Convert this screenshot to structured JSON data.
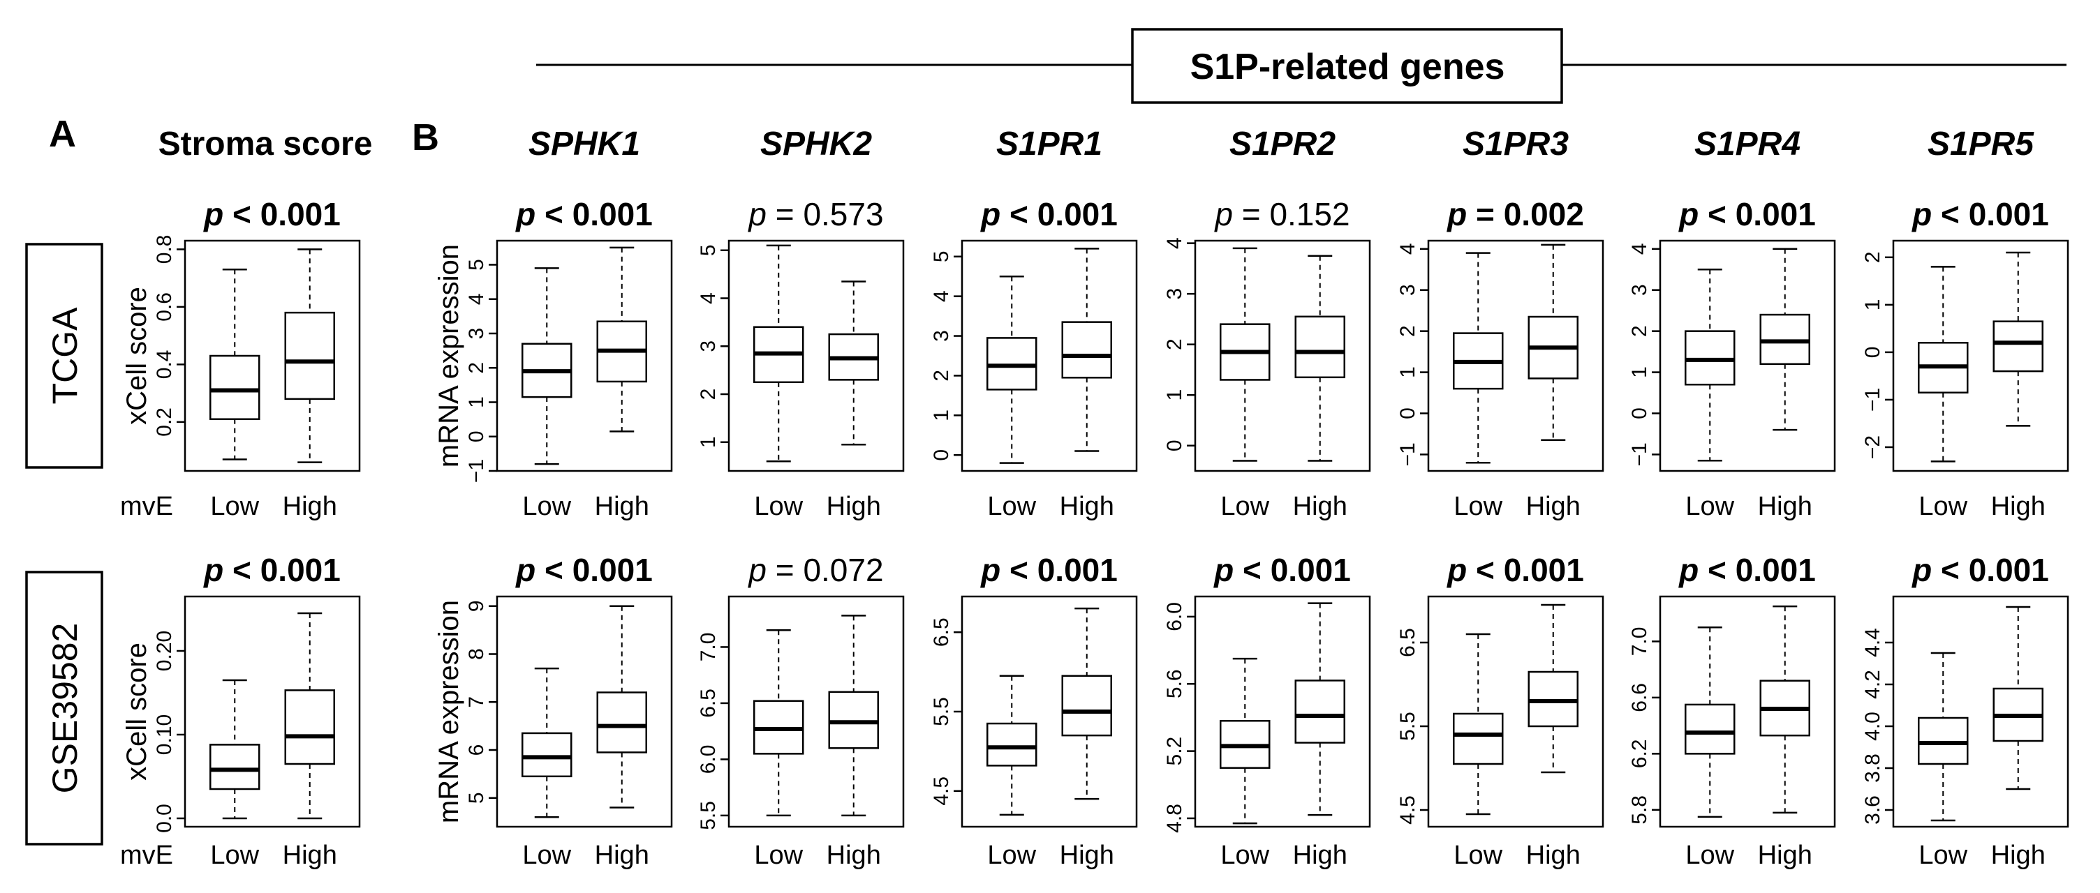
{
  "header": {
    "group_title": "S1P-related genes",
    "panel_a_label": "A",
    "panel_b_label": "B",
    "stroma_title": "Stroma score"
  },
  "row_labels": [
    "TCGA",
    "GSE39582"
  ],
  "group_axis_label": "mvE",
  "group_categories": [
    "Low",
    "High"
  ],
  "ylabels": {
    "stroma": "xCell score",
    "genes": "mRNA expression"
  },
  "chart_data": [
    {
      "type": "boxplot",
      "row": 0,
      "col": 0,
      "title": "",
      "pvalue": "p < 0.001",
      "pvalue_bold": true,
      "ylabel": "xCell score",
      "ylim": [
        0.03,
        0.83
      ],
      "yticks": [
        0.2,
        0.4,
        0.6,
        0.8
      ],
      "tick_labels": [
        "0.2",
        "0.4",
        "0.6",
        "0.8"
      ],
      "groups": [
        {
          "name": "Low",
          "min": 0.07,
          "q1": 0.21,
          "median": 0.31,
          "q3": 0.43,
          "max": 0.73
        },
        {
          "name": "High",
          "min": 0.06,
          "q1": 0.28,
          "median": 0.41,
          "q3": 0.58,
          "max": 0.8
        }
      ]
    },
    {
      "type": "boxplot",
      "row": 0,
      "col": 1,
      "title": "SPHK1",
      "pvalue": "p < 0.001",
      "pvalue_bold": true,
      "ylabel": "mRNA expression",
      "ylim": [
        -1,
        5.7
      ],
      "yticks": [
        -1,
        0,
        1,
        2,
        3,
        4,
        5
      ],
      "tick_labels": [
        "−1",
        "0",
        "1",
        "2",
        "3",
        "4",
        "5"
      ],
      "groups": [
        {
          "name": "Low",
          "min": -0.8,
          "q1": 1.15,
          "median": 1.9,
          "q3": 2.7,
          "max": 4.9
        },
        {
          "name": "High",
          "min": 0.15,
          "q1": 1.6,
          "median": 2.5,
          "q3": 3.35,
          "max": 5.5
        }
      ]
    },
    {
      "type": "boxplot",
      "row": 0,
      "col": 2,
      "title": "SPHK2",
      "pvalue": "p = 0.573",
      "pvalue_bold": false,
      "ylabel": "",
      "ylim": [
        0.4,
        5.2
      ],
      "yticks": [
        1,
        2,
        3,
        4,
        5
      ],
      "tick_labels": [
        "1",
        "2",
        "3",
        "4",
        "5"
      ],
      "groups": [
        {
          "name": "Low",
          "min": 0.6,
          "q1": 2.25,
          "median": 2.85,
          "q3": 3.4,
          "max": 5.1
        },
        {
          "name": "High",
          "min": 0.95,
          "q1": 2.3,
          "median": 2.75,
          "q3": 3.25,
          "max": 4.35
        }
      ]
    },
    {
      "type": "boxplot",
      "row": 0,
      "col": 3,
      "title": "S1PR1",
      "pvalue": "p < 0.001",
      "pvalue_bold": true,
      "ylabel": "",
      "ylim": [
        -0.4,
        5.4
      ],
      "yticks": [
        0,
        1,
        2,
        3,
        4,
        5
      ],
      "tick_labels": [
        "0",
        "1",
        "2",
        "3",
        "4",
        "5"
      ],
      "groups": [
        {
          "name": "Low",
          "min": -0.2,
          "q1": 1.65,
          "median": 2.25,
          "q3": 2.95,
          "max": 4.5
        },
        {
          "name": "High",
          "min": 0.1,
          "q1": 1.95,
          "median": 2.5,
          "q3": 3.35,
          "max": 5.2
        }
      ]
    },
    {
      "type": "boxplot",
      "row": 0,
      "col": 4,
      "title": "S1PR2",
      "pvalue": "p = 0.152",
      "pvalue_bold": false,
      "ylabel": "",
      "ylim": [
        -0.5,
        4.05
      ],
      "yticks": [
        0,
        1,
        2,
        3,
        4
      ],
      "tick_labels": [
        "0",
        "1",
        "2",
        "3",
        "4"
      ],
      "groups": [
        {
          "name": "Low",
          "min": -0.3,
          "q1": 1.3,
          "median": 1.85,
          "q3": 2.4,
          "max": 3.9
        },
        {
          "name": "High",
          "min": -0.3,
          "q1": 1.35,
          "median": 1.85,
          "q3": 2.55,
          "max": 3.75
        }
      ]
    },
    {
      "type": "boxplot",
      "row": 0,
      "col": 5,
      "title": "S1PR3",
      "pvalue": "p = 0.002",
      "pvalue_bold": true,
      "ylabel": "",
      "ylim": [
        -1.4,
        4.2
      ],
      "yticks": [
        -1,
        0,
        1,
        2,
        3,
        4
      ],
      "tick_labels": [
        "−1",
        "0",
        "1",
        "2",
        "3",
        "4"
      ],
      "groups": [
        {
          "name": "Low",
          "min": -1.2,
          "q1": 0.6,
          "median": 1.25,
          "q3": 1.95,
          "max": 3.9
        },
        {
          "name": "High",
          "min": -0.65,
          "q1": 0.85,
          "median": 1.6,
          "q3": 2.35,
          "max": 4.1
        }
      ]
    },
    {
      "type": "boxplot",
      "row": 0,
      "col": 6,
      "title": "S1PR4",
      "pvalue": "p < 0.001",
      "pvalue_bold": true,
      "ylabel": "",
      "ylim": [
        -1.4,
        4.2
      ],
      "yticks": [
        -1,
        0,
        1,
        2,
        3,
        4
      ],
      "tick_labels": [
        "−1",
        "0",
        "1",
        "2",
        "3",
        "4"
      ],
      "groups": [
        {
          "name": "Low",
          "min": -1.15,
          "q1": 0.7,
          "median": 1.3,
          "q3": 2.0,
          "max": 3.5
        },
        {
          "name": "High",
          "min": -0.4,
          "q1": 1.2,
          "median": 1.75,
          "q3": 2.4,
          "max": 4.0
        }
      ]
    },
    {
      "type": "boxplot",
      "row": 0,
      "col": 7,
      "title": "S1PR5",
      "pvalue": "p < 0.001",
      "pvalue_bold": true,
      "ylabel": "",
      "ylim": [
        -2.5,
        2.35
      ],
      "yticks": [
        -2,
        -1,
        0,
        1,
        2
      ],
      "tick_labels": [
        "−2",
        "−1",
        "0",
        "1",
        "2"
      ],
      "groups": [
        {
          "name": "Low",
          "min": -2.3,
          "q1": -0.85,
          "median": -0.3,
          "q3": 0.2,
          "max": 1.8
        },
        {
          "name": "High",
          "min": -1.55,
          "q1": -0.4,
          "median": 0.2,
          "q3": 0.65,
          "max": 2.1
        }
      ]
    },
    {
      "type": "boxplot",
      "row": 1,
      "col": 0,
      "title": "",
      "pvalue": "p < 0.001",
      "pvalue_bold": true,
      "ylabel": "xCell score",
      "ylim": [
        -0.01,
        0.265
      ],
      "yticks": [
        0.0,
        0.1,
        0.2
      ],
      "tick_labels": [
        "0.0",
        "0.10",
        "0.20"
      ],
      "groups": [
        {
          "name": "Low",
          "min": 0.0,
          "q1": 0.035,
          "median": 0.058,
          "q3": 0.088,
          "max": 0.165
        },
        {
          "name": "High",
          "min": 0.0,
          "q1": 0.065,
          "median": 0.098,
          "q3": 0.153,
          "max": 0.245
        }
      ]
    },
    {
      "type": "boxplot",
      "row": 1,
      "col": 1,
      "title": "",
      "pvalue": "p < 0.001",
      "pvalue_bold": true,
      "ylabel": "mRNA expression",
      "ylim": [
        4.4,
        9.2
      ],
      "yticks": [
        5,
        6,
        7,
        8,
        9
      ],
      "tick_labels": [
        "5",
        "6",
        "7",
        "8",
        "9"
      ],
      "groups": [
        {
          "name": "Low",
          "min": 4.6,
          "q1": 5.45,
          "median": 5.85,
          "q3": 6.35,
          "max": 7.7
        },
        {
          "name": "High",
          "min": 4.8,
          "q1": 5.95,
          "median": 6.5,
          "q3": 7.2,
          "max": 9.0
        }
      ]
    },
    {
      "type": "boxplot",
      "row": 1,
      "col": 2,
      "title": "",
      "pvalue": "p = 0.072",
      "pvalue_bold": false,
      "ylabel": "",
      "ylim": [
        5.4,
        7.45
      ],
      "yticks": [
        5.5,
        6.0,
        6.5,
        7.0
      ],
      "tick_labels": [
        "5.5",
        "6.0",
        "6.5",
        "7.0"
      ],
      "groups": [
        {
          "name": "Low",
          "min": 5.5,
          "q1": 6.05,
          "median": 6.27,
          "q3": 6.52,
          "max": 7.15
        },
        {
          "name": "High",
          "min": 5.5,
          "q1": 6.1,
          "median": 6.33,
          "q3": 6.6,
          "max": 7.28
        }
      ]
    },
    {
      "type": "boxplot",
      "row": 1,
      "col": 3,
      "title": "",
      "pvalue": "p < 0.001",
      "pvalue_bold": true,
      "ylabel": "",
      "ylim": [
        4.05,
        6.95
      ],
      "yticks": [
        4.5,
        5.5,
        6.5
      ],
      "tick_labels": [
        "4.5",
        "5.5",
        "6.5"
      ],
      "groups": [
        {
          "name": "Low",
          "min": 4.2,
          "q1": 4.82,
          "median": 5.05,
          "q3": 5.35,
          "max": 5.95
        },
        {
          "name": "High",
          "min": 4.4,
          "q1": 5.2,
          "median": 5.5,
          "q3": 5.95,
          "max": 6.8
        }
      ]
    },
    {
      "type": "boxplot",
      "row": 1,
      "col": 4,
      "title": "",
      "pvalue": "p < 0.001",
      "pvalue_bold": true,
      "ylabel": "",
      "ylim": [
        4.75,
        6.12
      ],
      "yticks": [
        4.8,
        5.2,
        5.6,
        6.0
      ],
      "tick_labels": [
        "4.8",
        "5.2",
        "5.6",
        "6.0"
      ],
      "groups": [
        {
          "name": "Low",
          "min": 4.77,
          "q1": 5.1,
          "median": 5.23,
          "q3": 5.38,
          "max": 5.75
        },
        {
          "name": "High",
          "min": 4.82,
          "q1": 5.25,
          "median": 5.41,
          "q3": 5.62,
          "max": 6.08
        }
      ]
    },
    {
      "type": "boxplot",
      "row": 1,
      "col": 5,
      "title": "",
      "pvalue": "p < 0.001",
      "pvalue_bold": true,
      "ylabel": "",
      "ylim": [
        4.3,
        7.05
      ],
      "yticks": [
        4.5,
        5.5,
        6.5
      ],
      "tick_labels": [
        "4.5",
        "5.5",
        "6.5"
      ],
      "groups": [
        {
          "name": "Low",
          "min": 4.45,
          "q1": 5.05,
          "median": 5.4,
          "q3": 5.65,
          "max": 6.6
        },
        {
          "name": "High",
          "min": 4.95,
          "q1": 5.5,
          "median": 5.8,
          "q3": 6.15,
          "max": 6.95
        }
      ]
    },
    {
      "type": "boxplot",
      "row": 1,
      "col": 6,
      "title": "",
      "pvalue": "p < 0.001",
      "pvalue_bold": true,
      "ylabel": "",
      "ylim": [
        5.68,
        7.32
      ],
      "yticks": [
        5.8,
        6.2,
        6.6,
        7.0
      ],
      "tick_labels": [
        "5.8",
        "6.2",
        "6.6",
        "7.0"
      ],
      "groups": [
        {
          "name": "Low",
          "min": 5.75,
          "q1": 6.2,
          "median": 6.35,
          "q3": 6.55,
          "max": 7.1
        },
        {
          "name": "High",
          "min": 5.78,
          "q1": 6.33,
          "median": 6.52,
          "q3": 6.72,
          "max": 7.25
        }
      ]
    },
    {
      "type": "boxplot",
      "row": 1,
      "col": 7,
      "title": "",
      "pvalue": "p < 0.001",
      "pvalue_bold": true,
      "ylabel": "",
      "ylim": [
        3.52,
        4.62
      ],
      "yticks": [
        3.6,
        3.8,
        4.0,
        4.2,
        4.4
      ],
      "tick_labels": [
        "3.6",
        "3.8",
        "4.0",
        "4.2",
        "4.4"
      ],
      "groups": [
        {
          "name": "Low",
          "min": 3.55,
          "q1": 3.82,
          "median": 3.92,
          "q3": 4.04,
          "max": 4.35
        },
        {
          "name": "High",
          "min": 3.7,
          "q1": 3.93,
          "median": 4.05,
          "q3": 4.18,
          "max": 4.57
        }
      ]
    }
  ]
}
